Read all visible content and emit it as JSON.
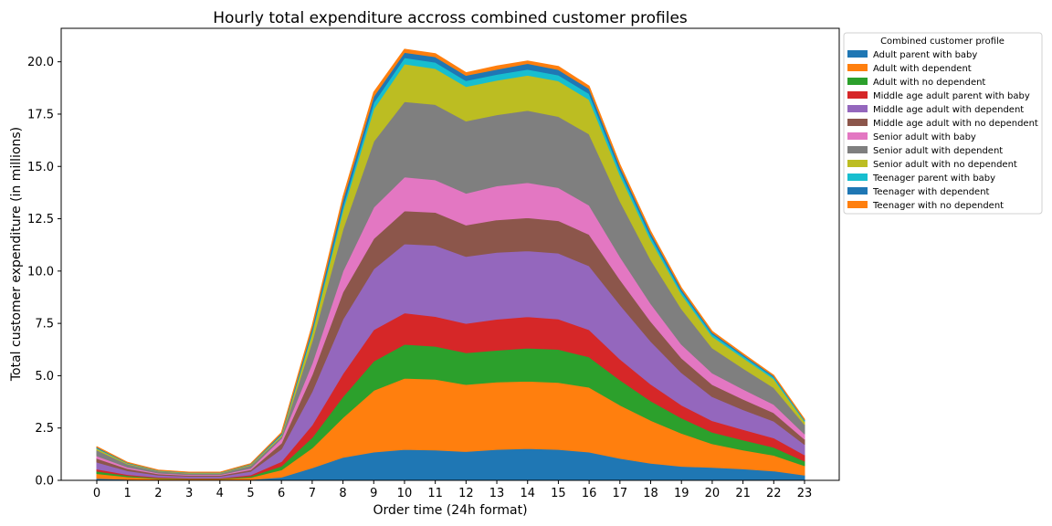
{
  "chart_data": {
    "type": "area",
    "stacked": true,
    "title": "Hourly total expenditure accross combined customer profiles",
    "xlabel": "Order time (24h format)",
    "ylabel": "Total customer expenditure (in millions)",
    "x": [
      0,
      1,
      2,
      3,
      4,
      5,
      6,
      7,
      8,
      9,
      10,
      11,
      12,
      13,
      14,
      15,
      16,
      17,
      18,
      19,
      20,
      21,
      22,
      23
    ],
    "xticks": [
      "0",
      "1",
      "2",
      "3",
      "4",
      "5",
      "6",
      "7",
      "8",
      "9",
      "10",
      "11",
      "12",
      "13",
      "14",
      "15",
      "16",
      "17",
      "18",
      "19",
      "20",
      "21",
      "22",
      "23"
    ],
    "ylim": [
      0,
      21.6
    ],
    "yticks": [
      "0.0",
      "2.5",
      "5.0",
      "7.5",
      "10.0",
      "12.5",
      "15.0",
      "17.5",
      "20.0"
    ],
    "grid": false,
    "legend_title": "Combined customer profile",
    "legend_position": "outside-right-top",
    "series": [
      {
        "name": "Adult parent with baby",
        "color": "#1f77b4",
        "values": [
          0.1,
          0.05,
          0.03,
          0.02,
          0.02,
          0.04,
          0.15,
          0.6,
          1.1,
          1.35,
          1.48,
          1.45,
          1.38,
          1.48,
          1.52,
          1.48,
          1.35,
          1.05,
          0.82,
          0.67,
          0.62,
          0.55,
          0.45,
          0.25
        ]
      },
      {
        "name": "Adult with dependent",
        "color": "#ff7f0e",
        "values": [
          0.22,
          0.12,
          0.06,
          0.05,
          0.05,
          0.1,
          0.35,
          0.95,
          1.9,
          2.95,
          3.4,
          3.38,
          3.2,
          3.22,
          3.22,
          3.2,
          3.1,
          2.55,
          2.05,
          1.58,
          1.13,
          0.9,
          0.75,
          0.45
        ]
      },
      {
        "name": "Adult with no dependent",
        "color": "#2ca02c",
        "values": [
          0.12,
          0.06,
          0.03,
          0.02,
          0.02,
          0.06,
          0.18,
          0.5,
          1.0,
          1.4,
          1.62,
          1.58,
          1.52,
          1.52,
          1.58,
          1.58,
          1.45,
          1.2,
          0.93,
          0.73,
          0.55,
          0.48,
          0.38,
          0.22
        ]
      },
      {
        "name": "Middle age adult parent with baby",
        "color": "#d62728",
        "values": [
          0.1,
          0.05,
          0.03,
          0.02,
          0.02,
          0.06,
          0.22,
          0.6,
          1.1,
          1.5,
          1.5,
          1.42,
          1.4,
          1.48,
          1.5,
          1.45,
          1.3,
          1.0,
          0.8,
          0.62,
          0.55,
          0.5,
          0.45,
          0.3
        ]
      },
      {
        "name": "Middle age adult with dependent",
        "color": "#9467bd",
        "values": [
          0.33,
          0.18,
          0.1,
          0.08,
          0.08,
          0.17,
          0.6,
          1.6,
          2.6,
          2.9,
          3.3,
          3.4,
          3.2,
          3.2,
          3.15,
          3.15,
          3.05,
          2.6,
          2.05,
          1.55,
          1.15,
          0.95,
          0.8,
          0.5
        ]
      },
      {
        "name": "Middle age adult with no dependent",
        "color": "#8c564b",
        "values": [
          0.18,
          0.1,
          0.06,
          0.05,
          0.05,
          0.08,
          0.28,
          0.8,
          1.3,
          1.45,
          1.58,
          1.58,
          1.5,
          1.55,
          1.58,
          1.55,
          1.5,
          1.2,
          0.95,
          0.7,
          0.58,
          0.5,
          0.4,
          0.25
        ]
      },
      {
        "name": "Senior adult with baby",
        "color": "#e377c2",
        "values": [
          0.12,
          0.07,
          0.04,
          0.03,
          0.03,
          0.07,
          0.22,
          0.55,
          1.0,
          1.5,
          1.62,
          1.55,
          1.52,
          1.62,
          1.68,
          1.58,
          1.4,
          1.1,
          0.85,
          0.65,
          0.55,
          0.48,
          0.4,
          0.25
        ]
      },
      {
        "name": "Senior adult with dependent",
        "color": "#7f7f7f",
        "values": [
          0.28,
          0.15,
          0.09,
          0.07,
          0.07,
          0.14,
          0.1,
          1.05,
          2.0,
          3.15,
          3.6,
          3.6,
          3.45,
          3.4,
          3.45,
          3.4,
          3.4,
          2.65,
          2.1,
          1.7,
          1.2,
          1.0,
          0.8,
          0.45
        ]
      },
      {
        "name": "Senior adult with no dependent",
        "color": "#bcbd22",
        "values": [
          0.08,
          0.04,
          0.02,
          0.02,
          0.02,
          0.04,
          0.07,
          0.4,
          0.9,
          1.55,
          1.8,
          1.72,
          1.65,
          1.65,
          1.68,
          1.7,
          1.65,
          1.25,
          0.95,
          0.7,
          0.55,
          0.5,
          0.42,
          0.15
        ]
      },
      {
        "name": "Teenager parent with baby",
        "color": "#17becf",
        "values": [
          0.02,
          0.01,
          0.01,
          0.01,
          0.01,
          0.01,
          0.03,
          0.1,
          0.2,
          0.3,
          0.3,
          0.3,
          0.28,
          0.28,
          0.28,
          0.28,
          0.28,
          0.22,
          0.18,
          0.14,
          0.12,
          0.1,
          0.09,
          0.05
        ]
      },
      {
        "name": "Teenager with dependent",
        "color": "#1f77b4",
        "values": [
          0.04,
          0.02,
          0.01,
          0.01,
          0.01,
          0.02,
          0.05,
          0.15,
          0.3,
          0.3,
          0.25,
          0.26,
          0.25,
          0.24,
          0.28,
          0.26,
          0.24,
          0.18,
          0.15,
          0.1,
          0.07,
          0.06,
          0.05,
          0.03
        ]
      },
      {
        "name": "Teenager with no dependent",
        "color": "#ff7f0e",
        "values": [
          0.02,
          0.01,
          0.01,
          0.01,
          0.01,
          0.01,
          0.03,
          0.1,
          0.15,
          0.2,
          0.15,
          0.15,
          0.13,
          0.16,
          0.12,
          0.15,
          0.12,
          0.1,
          0.08,
          0.06,
          0.05,
          0.04,
          0.03,
          0.02
        ]
      }
    ]
  }
}
